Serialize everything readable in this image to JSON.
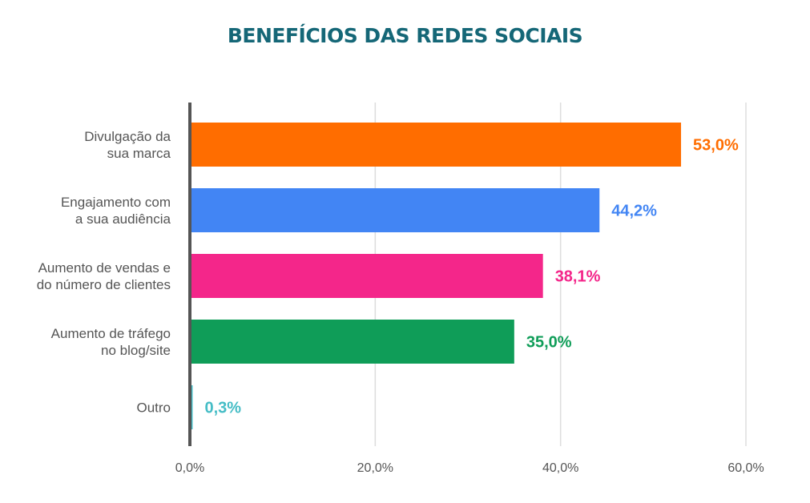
{
  "chart_data": {
    "type": "bar",
    "orientation": "horizontal",
    "title": "BENEFÍCIOS DAS REDES SOCIAIS",
    "xlabel": "",
    "ylabel": "",
    "categories": [
      [
        "Divulgação da",
        "sua marca"
      ],
      [
        "Engajamento com",
        "a sua audiência"
      ],
      [
        "Aumento de vendas e",
        "do número de clientes"
      ],
      [
        "Aumento de tráfego",
        "no blog/site"
      ],
      [
        "Outro"
      ]
    ],
    "values": [
      53.0,
      44.2,
      38.1,
      35.0,
      0.3
    ],
    "value_labels": [
      "53,0%",
      "44,2%",
      "38,1%",
      "35,0%",
      "0,3%"
    ],
    "colors": [
      "#ff6d00",
      "#4285f4",
      "#f4268a",
      "#0f9d58",
      "#46bdc6"
    ],
    "xlim": [
      0,
      60
    ],
    "x_ticks": [
      0,
      20,
      40,
      60
    ],
    "x_tick_labels": [
      "0,0%",
      "20,0%",
      "40,0%",
      "60,0%"
    ],
    "grid": true,
    "legend": "none",
    "title_color": "#156777",
    "axis_color": "#555555",
    "grid_color": "#dddddd"
  }
}
